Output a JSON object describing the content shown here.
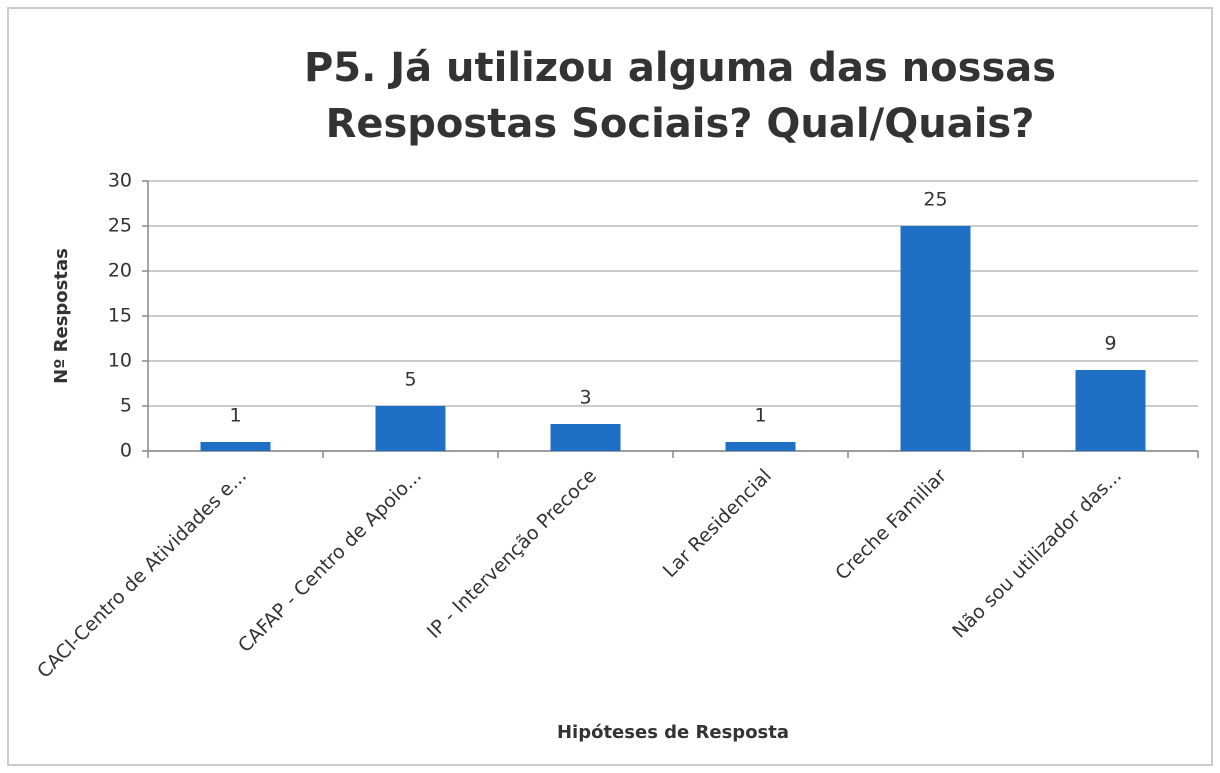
{
  "chart_data": {
    "type": "bar",
    "title": "P5. Já utilizou alguma das nossas Respostas Sociais? Qual/Quais?",
    "x_label": "Hipóteses de Resposta",
    "y_label": "Nº Respostas",
    "categories": [
      "CACI-Centro de Atividades e...",
      "CAFAP - Centro de Apoio...",
      "IP - Intervenção Precoce",
      "Lar Residencial",
      "Creche Familiar",
      "Não sou utilizador das..."
    ],
    "values": [
      1,
      5,
      3,
      1,
      25,
      9
    ],
    "color": "#1f6fc5",
    "ylim": [
      0,
      30
    ],
    "yticks": [
      0,
      5,
      10,
      15,
      20,
      25,
      30
    ],
    "grid": true
  }
}
